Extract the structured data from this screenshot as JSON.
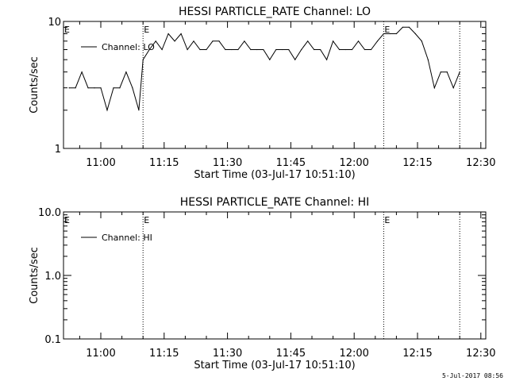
{
  "chart_data": [
    {
      "type": "line",
      "title": "HESSI PARTICLE_RATE Channel: LO",
      "xlabel": "Start Time (03-Jul-17 10:51:10)",
      "ylabel": "Counts/sec",
      "yscale": "log",
      "ylim": [
        1,
        10
      ],
      "ytick_labels": [
        "1",
        "10"
      ],
      "xlim": [
        "10:51:10",
        "12:31:10"
      ],
      "xtick_labels": [
        "11:00",
        "11:15",
        "11:30",
        "11:45",
        "12:00",
        "12:15",
        "12:30"
      ],
      "grid": false,
      "legend": "top-left",
      "event_markers": [
        {
          "time": "11:10:00",
          "label": "E"
        },
        {
          "time": "12:07:00",
          "label": "E"
        },
        {
          "time": "12:25:00",
          "label": ""
        }
      ],
      "series": [
        {
          "name": "Channel: LO",
          "x": [
            "10:52:30",
            "10:54:00",
            "10:55:30",
            "10:57:00",
            "10:58:30",
            "11:00:00",
            "11:01:30",
            "11:03:00",
            "11:04:30",
            "11:06:00",
            "11:07:30",
            "11:09:00",
            "11:10:00",
            "11:11:30",
            "11:13:00",
            "11:14:30",
            "11:16:00",
            "11:17:30",
            "11:19:00",
            "11:20:30",
            "11:22:00",
            "11:23:30",
            "11:25:00",
            "11:26:30",
            "11:28:00",
            "11:29:30",
            "11:31:00",
            "11:32:30",
            "11:34:00",
            "11:35:30",
            "11:37:00",
            "11:38:30",
            "11:40:00",
            "11:41:30",
            "11:43:00",
            "11:44:30",
            "11:46:00",
            "11:47:30",
            "11:49:00",
            "11:50:30",
            "11:52:00",
            "11:53:30",
            "11:55:00",
            "11:56:30",
            "11:58:00",
            "11:59:30",
            "12:01:00",
            "12:02:30",
            "12:04:00",
            "12:05:30",
            "12:07:00",
            "12:08:30",
            "12:10:00",
            "12:11:30",
            "12:13:00",
            "12:14:30",
            "12:16:00",
            "12:17:30",
            "12:19:00",
            "12:20:30",
            "12:22:00",
            "12:23:30",
            "12:25:00"
          ],
          "values": [
            3,
            3,
            4,
            3,
            3,
            3,
            2,
            3,
            3,
            4,
            3,
            2,
            5,
            6,
            7,
            6,
            8,
            7,
            8,
            6,
            7,
            6,
            6,
            7,
            7,
            6,
            6,
            6,
            7,
            6,
            6,
            6,
            5,
            6,
            6,
            6,
            5,
            6,
            7,
            6,
            6,
            5,
            7,
            6,
            6,
            6,
            7,
            6,
            6,
            7,
            8,
            8,
            8,
            9,
            9,
            8,
            7,
            5,
            3,
            4,
            4,
            3,
            4
          ]
        }
      ]
    },
    {
      "type": "line",
      "title": "HESSI PARTICLE_RATE Channel: HI",
      "xlabel": "Start Time (03-Jul-17 10:51:10)",
      "ylabel": "Counts/sec",
      "yscale": "log",
      "ylim": [
        0.1,
        10
      ],
      "ytick_labels": [
        "0.1",
        "1.0",
        "10.0"
      ],
      "xlim": [
        "10:51:10",
        "12:31:10"
      ],
      "xtick_labels": [
        "11:00",
        "11:15",
        "11:30",
        "11:45",
        "12:00",
        "12:15",
        "12:30"
      ],
      "grid": false,
      "legend": "top-left",
      "event_markers": [
        {
          "time": "11:10:00",
          "label": "E"
        },
        {
          "time": "12:07:00",
          "label": "E"
        },
        {
          "time": "12:25:00",
          "label": ""
        }
      ],
      "series": [
        {
          "name": "Channel: HI",
          "x": [],
          "values": []
        }
      ]
    }
  ],
  "footer": "5-Jul-2017 08:56",
  "colors": {
    "background": "#ffffff",
    "foreground": "#000000"
  }
}
